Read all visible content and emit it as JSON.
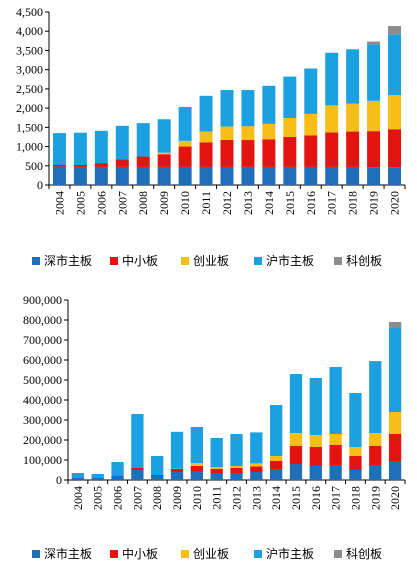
{
  "series_meta": [
    {
      "key": "shenzhen_main",
      "name": "深市主板",
      "color": "#1f6fb8"
    },
    {
      "key": "sme",
      "name": "中小板",
      "color": "#e3140f"
    },
    {
      "key": "chinext",
      "name": "创业板",
      "color": "#f7bd18"
    },
    {
      "key": "shanghai_main",
      "name": "沪市主板",
      "color": "#1ba1e2"
    },
    {
      "key": "star",
      "name": "科创板",
      "color": "#8c8c8c"
    }
  ],
  "chart_data": [
    {
      "type": "bar",
      "stacked": true,
      "title": "",
      "xlabel": "",
      "ylabel": "",
      "grid": false,
      "legend_position": "bottom",
      "ylim": [
        0,
        4500
      ],
      "yticks": [
        0,
        500,
        1000,
        1500,
        2000,
        2500,
        3000,
        3500,
        4000,
        4500
      ],
      "ytick_labels": [
        "0",
        "500",
        "1,000",
        "1,500",
        "2,000",
        "2,500",
        "3,000",
        "3,500",
        "4,000",
        "4,500"
      ],
      "categories": [
        "2004",
        "2005",
        "2006",
        "2007",
        "2008",
        "2009",
        "2010",
        "2011",
        "2012",
        "2013",
        "2014",
        "2015",
        "2016",
        "2017",
        "2018",
        "2019",
        "2020"
      ],
      "series": [
        {
          "name": "深市主板",
          "values": [
            480,
            470,
            470,
            470,
            470,
            470,
            470,
            470,
            470,
            470,
            470,
            470,
            470,
            470,
            470,
            460,
            460
          ]
        },
        {
          "name": "中小板",
          "values": [
            40,
            50,
            100,
            200,
            270,
            330,
            530,
            640,
            700,
            700,
            720,
            780,
            820,
            900,
            920,
            940,
            990
          ]
        },
        {
          "name": "创业板",
          "values": [
            0,
            0,
            0,
            0,
            0,
            40,
            150,
            280,
            350,
            360,
            400,
            490,
            560,
            700,
            730,
            790,
            890
          ]
        },
        {
          "name": "沪市主板",
          "values": [
            830,
            840,
            840,
            870,
            870,
            870,
            880,
            930,
            950,
            940,
            990,
            1080,
            1180,
            1370,
            1410,
            1470,
            1580
          ]
        },
        {
          "name": "科创板",
          "values": [
            0,
            0,
            0,
            0,
            0,
            0,
            0,
            0,
            0,
            0,
            0,
            0,
            0,
            0,
            0,
            70,
            215
          ]
        }
      ]
    },
    {
      "type": "bar",
      "stacked": true,
      "title": "",
      "xlabel": "",
      "ylabel": "",
      "grid": false,
      "legend_position": "bottom",
      "ylim": [
        0,
        900000
      ],
      "yticks": [
        0,
        100000,
        200000,
        300000,
        400000,
        500000,
        600000,
        700000,
        800000,
        900000
      ],
      "ytick_labels": [
        "0",
        "100,000",
        "200,000",
        "300,000",
        "400,000",
        "500,000",
        "600,000",
        "700,000",
        "800,000",
        "900,000"
      ],
      "categories": [
        "2004",
        "2005",
        "2006",
        "2007",
        "2008",
        "2009",
        "2010",
        "2011",
        "2012",
        "2013",
        "2014",
        "2015",
        "2016",
        "2017",
        "2018",
        "2019",
        "2020"
      ],
      "series": [
        {
          "name": "深市主板",
          "values": [
            12000,
            12000,
            20000,
            50000,
            20000,
            40000,
            45000,
            35000,
            35000,
            40000,
            55000,
            80000,
            70000,
            75000,
            50000,
            75000,
            95000
          ]
        },
        {
          "name": "中小板",
          "values": [
            1000,
            1000,
            2000,
            10000,
            5000,
            15000,
            25000,
            20000,
            25000,
            28000,
            40000,
            90000,
            95000,
            100000,
            70000,
            95000,
            135000
          ]
        },
        {
          "name": "创业板",
          "values": [
            0,
            0,
            0,
            0,
            0,
            1000,
            15000,
            10000,
            10000,
            15000,
            25000,
            65000,
            60000,
            55000,
            45000,
            65000,
            110000
          ]
        },
        {
          "name": "沪市主板",
          "values": [
            22000,
            17000,
            68000,
            270000,
            95000,
            185000,
            180000,
            145000,
            160000,
            155000,
            255000,
            295000,
            285000,
            335000,
            270000,
            355000,
            420000
          ]
        },
        {
          "name": "科创板",
          "values": [
            0,
            0,
            0,
            0,
            0,
            0,
            0,
            0,
            0,
            0,
            0,
            0,
            0,
            0,
            0,
            5000,
            30000
          ]
        }
      ]
    }
  ]
}
